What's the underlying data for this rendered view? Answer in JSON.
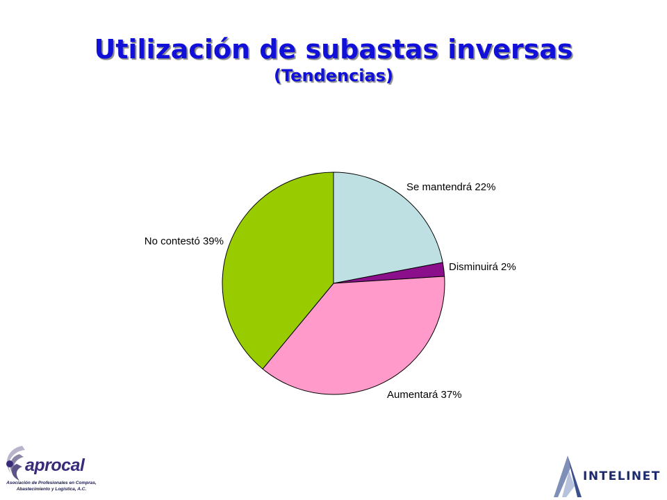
{
  "title": "Utilización de subastas inversas",
  "subtitle": "(Tendencias)",
  "colors": {
    "title": "#1010D8",
    "pie_outline": "#000000",
    "aprocal_logo": "#3a2a7a",
    "intelinet_logo": "#1c2a6b"
  },
  "chart_data": {
    "type": "pie",
    "slices": [
      {
        "label": "Se mantendrá 22%",
        "value": 22,
        "color": "#BEE0E3"
      },
      {
        "label": "Disminuirá 2%",
        "value": 2,
        "color": "#8B0E8B"
      },
      {
        "label": "Aumentará 37%",
        "value": 37,
        "color": "#FF9ACB"
      },
      {
        "label": "No contestó 39%",
        "value": 39,
        "color": "#99CC00"
      }
    ],
    "start": "12 o'clock",
    "direction": "clockwise"
  },
  "logos": {
    "aprocal": {
      "name": "aprocal",
      "tagline_line1": "Asociación de Profesionales en Compras,",
      "tagline_line2": "Abastecimiento y Logística, A.C.",
      "icon": "aprocal-swirl-icon"
    },
    "intelinet": {
      "name": "INTELINET",
      "icon": "intelinet-tower-icon"
    }
  }
}
